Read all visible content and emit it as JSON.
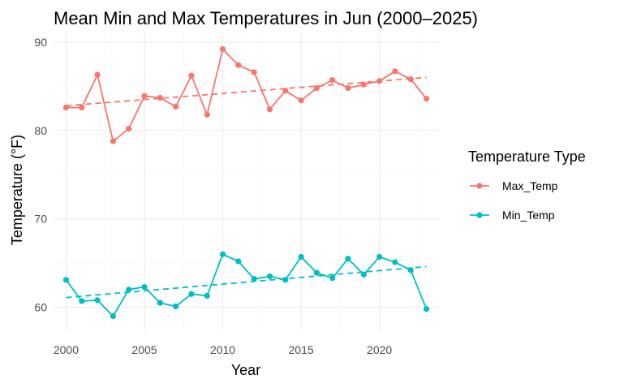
{
  "chart_data": {
    "type": "line",
    "title": "Mean Min and Max Temperatures in Jun (2000–2025)",
    "xlabel": "Year",
    "ylabel": "Temperature (°F)",
    "xlim": [
      1999.2,
      2023.8
    ],
    "ylim": [
      57.3,
      91.0
    ],
    "x_ticks": [
      2000,
      2005,
      2010,
      2015,
      2020
    ],
    "y_ticks": [
      60,
      70,
      80,
      90
    ],
    "x_minor_ticks": [
      2002.5,
      2007.5,
      2012.5,
      2017.5,
      2022.5
    ],
    "y_minor_ticks": [
      65,
      75,
      85
    ],
    "grid": true,
    "legend": {
      "title": "Temperature Type",
      "position": "right"
    },
    "x": [
      2000,
      2001,
      2002,
      2003,
      2004,
      2005,
      2006,
      2007,
      2008,
      2009,
      2010,
      2011,
      2012,
      2013,
      2014,
      2015,
      2016,
      2017,
      2018,
      2019,
      2020,
      2021,
      2022,
      2023
    ],
    "series": [
      {
        "name": "Max_Temp",
        "color": "#F8766D",
        "values": [
          82.6,
          82.6,
          86.3,
          78.8,
          80.2,
          83.9,
          83.7,
          82.7,
          86.2,
          81.8,
          89.2,
          87.4,
          86.6,
          82.4,
          84.5,
          83.4,
          84.8,
          85.7,
          84.8,
          85.2,
          85.6,
          86.7,
          85.8,
          83.6
        ],
        "trend": {
          "style": "dashed",
          "start": [
            2000,
            82.8
          ],
          "end": [
            2023,
            86.0
          ]
        }
      },
      {
        "name": "Min_Temp",
        "color": "#00BFC4",
        "values": [
          63.1,
          60.7,
          60.8,
          59.0,
          62.0,
          62.3,
          60.5,
          60.1,
          61.5,
          61.3,
          66.0,
          65.2,
          63.2,
          63.5,
          63.1,
          65.7,
          63.9,
          63.3,
          65.5,
          63.7,
          65.7,
          65.1,
          64.2,
          59.8
        ],
        "trend": {
          "style": "dashed",
          "start": [
            2000,
            61.1
          ],
          "end": [
            2023,
            64.6
          ]
        }
      }
    ]
  }
}
